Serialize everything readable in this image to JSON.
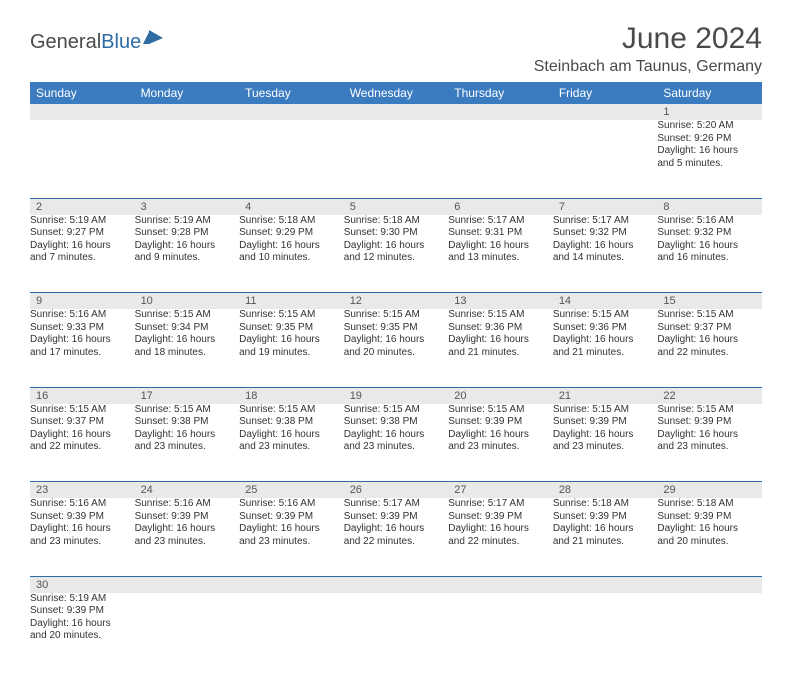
{
  "logo": {
    "general": "General",
    "blue": "Blue"
  },
  "title": "June 2024",
  "location": "Steinbach am Taunus, Germany",
  "weekdays": [
    "Sunday",
    "Monday",
    "Tuesday",
    "Wednesday",
    "Thursday",
    "Friday",
    "Saturday"
  ],
  "colors": {
    "header_bg": "#3b7bbf",
    "daynum_bg": "#e9e9e9",
    "row_divider": "#2f6ca3"
  },
  "weeks": [
    [
      null,
      null,
      null,
      null,
      null,
      null,
      {
        "n": "1",
        "sr": "Sunrise: 5:20 AM",
        "ss": "Sunset: 9:26 PM",
        "d1": "Daylight: 16 hours",
        "d2": "and 5 minutes."
      }
    ],
    [
      {
        "n": "2",
        "sr": "Sunrise: 5:19 AM",
        "ss": "Sunset: 9:27 PM",
        "d1": "Daylight: 16 hours",
        "d2": "and 7 minutes."
      },
      {
        "n": "3",
        "sr": "Sunrise: 5:19 AM",
        "ss": "Sunset: 9:28 PM",
        "d1": "Daylight: 16 hours",
        "d2": "and 9 minutes."
      },
      {
        "n": "4",
        "sr": "Sunrise: 5:18 AM",
        "ss": "Sunset: 9:29 PM",
        "d1": "Daylight: 16 hours",
        "d2": "and 10 minutes."
      },
      {
        "n": "5",
        "sr": "Sunrise: 5:18 AM",
        "ss": "Sunset: 9:30 PM",
        "d1": "Daylight: 16 hours",
        "d2": "and 12 minutes."
      },
      {
        "n": "6",
        "sr": "Sunrise: 5:17 AM",
        "ss": "Sunset: 9:31 PM",
        "d1": "Daylight: 16 hours",
        "d2": "and 13 minutes."
      },
      {
        "n": "7",
        "sr": "Sunrise: 5:17 AM",
        "ss": "Sunset: 9:32 PM",
        "d1": "Daylight: 16 hours",
        "d2": "and 14 minutes."
      },
      {
        "n": "8",
        "sr": "Sunrise: 5:16 AM",
        "ss": "Sunset: 9:32 PM",
        "d1": "Daylight: 16 hours",
        "d2": "and 16 minutes."
      }
    ],
    [
      {
        "n": "9",
        "sr": "Sunrise: 5:16 AM",
        "ss": "Sunset: 9:33 PM",
        "d1": "Daylight: 16 hours",
        "d2": "and 17 minutes."
      },
      {
        "n": "10",
        "sr": "Sunrise: 5:15 AM",
        "ss": "Sunset: 9:34 PM",
        "d1": "Daylight: 16 hours",
        "d2": "and 18 minutes."
      },
      {
        "n": "11",
        "sr": "Sunrise: 5:15 AM",
        "ss": "Sunset: 9:35 PM",
        "d1": "Daylight: 16 hours",
        "d2": "and 19 minutes."
      },
      {
        "n": "12",
        "sr": "Sunrise: 5:15 AM",
        "ss": "Sunset: 9:35 PM",
        "d1": "Daylight: 16 hours",
        "d2": "and 20 minutes."
      },
      {
        "n": "13",
        "sr": "Sunrise: 5:15 AM",
        "ss": "Sunset: 9:36 PM",
        "d1": "Daylight: 16 hours",
        "d2": "and 21 minutes."
      },
      {
        "n": "14",
        "sr": "Sunrise: 5:15 AM",
        "ss": "Sunset: 9:36 PM",
        "d1": "Daylight: 16 hours",
        "d2": "and 21 minutes."
      },
      {
        "n": "15",
        "sr": "Sunrise: 5:15 AM",
        "ss": "Sunset: 9:37 PM",
        "d1": "Daylight: 16 hours",
        "d2": "and 22 minutes."
      }
    ],
    [
      {
        "n": "16",
        "sr": "Sunrise: 5:15 AM",
        "ss": "Sunset: 9:37 PM",
        "d1": "Daylight: 16 hours",
        "d2": "and 22 minutes."
      },
      {
        "n": "17",
        "sr": "Sunrise: 5:15 AM",
        "ss": "Sunset: 9:38 PM",
        "d1": "Daylight: 16 hours",
        "d2": "and 23 minutes."
      },
      {
        "n": "18",
        "sr": "Sunrise: 5:15 AM",
        "ss": "Sunset: 9:38 PM",
        "d1": "Daylight: 16 hours",
        "d2": "and 23 minutes."
      },
      {
        "n": "19",
        "sr": "Sunrise: 5:15 AM",
        "ss": "Sunset: 9:38 PM",
        "d1": "Daylight: 16 hours",
        "d2": "and 23 minutes."
      },
      {
        "n": "20",
        "sr": "Sunrise: 5:15 AM",
        "ss": "Sunset: 9:39 PM",
        "d1": "Daylight: 16 hours",
        "d2": "and 23 minutes."
      },
      {
        "n": "21",
        "sr": "Sunrise: 5:15 AM",
        "ss": "Sunset: 9:39 PM",
        "d1": "Daylight: 16 hours",
        "d2": "and 23 minutes."
      },
      {
        "n": "22",
        "sr": "Sunrise: 5:15 AM",
        "ss": "Sunset: 9:39 PM",
        "d1": "Daylight: 16 hours",
        "d2": "and 23 minutes."
      }
    ],
    [
      {
        "n": "23",
        "sr": "Sunrise: 5:16 AM",
        "ss": "Sunset: 9:39 PM",
        "d1": "Daylight: 16 hours",
        "d2": "and 23 minutes."
      },
      {
        "n": "24",
        "sr": "Sunrise: 5:16 AM",
        "ss": "Sunset: 9:39 PM",
        "d1": "Daylight: 16 hours",
        "d2": "and 23 minutes."
      },
      {
        "n": "25",
        "sr": "Sunrise: 5:16 AM",
        "ss": "Sunset: 9:39 PM",
        "d1": "Daylight: 16 hours",
        "d2": "and 23 minutes."
      },
      {
        "n": "26",
        "sr": "Sunrise: 5:17 AM",
        "ss": "Sunset: 9:39 PM",
        "d1": "Daylight: 16 hours",
        "d2": "and 22 minutes."
      },
      {
        "n": "27",
        "sr": "Sunrise: 5:17 AM",
        "ss": "Sunset: 9:39 PM",
        "d1": "Daylight: 16 hours",
        "d2": "and 22 minutes."
      },
      {
        "n": "28",
        "sr": "Sunrise: 5:18 AM",
        "ss": "Sunset: 9:39 PM",
        "d1": "Daylight: 16 hours",
        "d2": "and 21 minutes."
      },
      {
        "n": "29",
        "sr": "Sunrise: 5:18 AM",
        "ss": "Sunset: 9:39 PM",
        "d1": "Daylight: 16 hours",
        "d2": "and 20 minutes."
      }
    ],
    [
      {
        "n": "30",
        "sr": "Sunrise: 5:19 AM",
        "ss": "Sunset: 9:39 PM",
        "d1": "Daylight: 16 hours",
        "d2": "and 20 minutes."
      },
      null,
      null,
      null,
      null,
      null,
      null
    ]
  ]
}
